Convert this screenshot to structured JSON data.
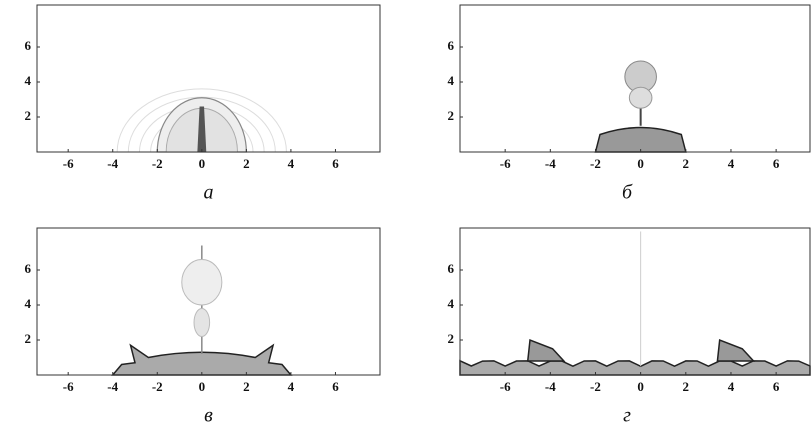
{
  "chart_data": [
    {
      "type": "image",
      "caption": "а",
      "xlim": [
        -7.4,
        8
      ],
      "ylim": [
        0,
        8.4
      ],
      "xticks": [
        -6,
        -4,
        -2,
        0,
        2,
        4,
        6
      ],
      "yticks": [
        2,
        4,
        6
      ]
    },
    {
      "type": "image",
      "caption": "б",
      "xlim": [
        -8,
        7.5
      ],
      "ylim": [
        0,
        8.4
      ],
      "xticks": [
        -6,
        -4,
        -2,
        0,
        2,
        4,
        6
      ],
      "yticks": [
        2,
        4,
        6
      ]
    },
    {
      "type": "image",
      "caption": "в",
      "xlim": [
        -7.4,
        8
      ],
      "ylim": [
        0,
        8.4
      ],
      "xticks": [
        -6,
        -4,
        -2,
        0,
        2,
        4,
        6
      ],
      "yticks": [
        2,
        4,
        6
      ]
    },
    {
      "type": "image",
      "caption": "г",
      "xlim": [
        -8,
        7.5
      ],
      "ylim": [
        0,
        8.4
      ],
      "xticks": [
        -6,
        -4,
        -2,
        0,
        2,
        4,
        6
      ],
      "yticks": [
        2,
        4,
        6
      ]
    }
  ]
}
